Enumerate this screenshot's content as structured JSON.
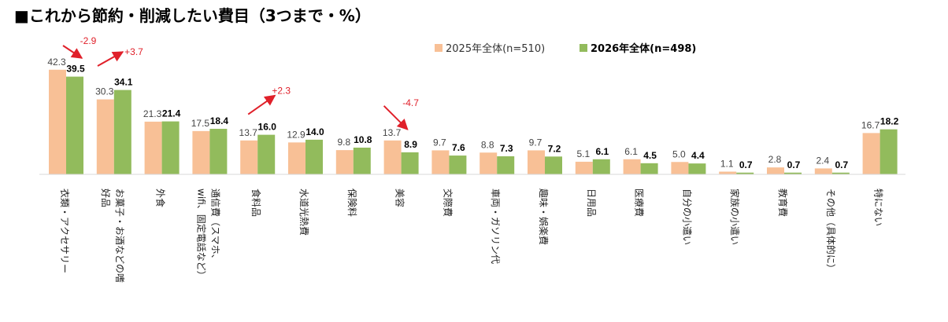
{
  "chart_data": {
    "type": "bar",
    "title": "■これから節約・削減したい費目（3つまで・%）",
    "categories": [
      [
        "衣類・アクセサリー"
      ],
      [
        "お菓子・お酒などの嗜",
        "好品"
      ],
      [
        "外食"
      ],
      [
        "通信費（スマホ、",
        "wifi、固定電話など）"
      ],
      [
        "食料品"
      ],
      [
        "水道光熱費"
      ],
      [
        "保険料"
      ],
      [
        "美容"
      ],
      [
        "交際費"
      ],
      [
        "車両・ガソリン代"
      ],
      [
        "趣味・娯楽費"
      ],
      [
        "日用品"
      ],
      [
        "医療費"
      ],
      [
        "自分の小遣い"
      ],
      [
        "家族の小遣い"
      ],
      [
        "教育費"
      ],
      [
        "その他（具体的に）"
      ],
      [
        "特にない"
      ]
    ],
    "series": [
      {
        "name": "2025年全体(n=510)",
        "color": "#F8C096",
        "values": [
          42.3,
          30.3,
          21.3,
          17.5,
          13.7,
          12.9,
          9.8,
          13.7,
          9.7,
          8.8,
          9.7,
          5.1,
          6.1,
          5.0,
          1.1,
          2.8,
          2.4,
          16.7
        ]
      },
      {
        "name": "2026年全体(n=498)",
        "color": "#92BB5C",
        "values": [
          39.5,
          34.1,
          21.4,
          18.4,
          16.0,
          14.0,
          10.8,
          8.9,
          7.6,
          7.3,
          7.2,
          6.1,
          4.5,
          4.4,
          0.7,
          0.7,
          0.7,
          18.2
        ]
      }
    ],
    "value_labels": {
      "a": [
        "42.3",
        "30.3",
        "21.3",
        "17.5",
        "13.7",
        "12.9",
        "9.8",
        "13.7",
        "9.7",
        "8.8",
        "9.7",
        "5.1",
        "6.1",
        "5.0",
        "1.1",
        "2.8",
        "2.4",
        "16.7"
      ],
      "b": [
        "39.5",
        "34.1",
        "21.4",
        "18.4",
        "16.0",
        "14.0",
        "10.8",
        "8.9",
        "7.6",
        "7.3",
        "7.2",
        "6.1",
        "4.5",
        "4.4",
        "0.7",
        "0.7",
        "0.7",
        "18.2"
      ]
    },
    "annotations": [
      {
        "category_index": 0,
        "text": "-2.9",
        "direction": "down"
      },
      {
        "category_index": 1,
        "text": "+3.7",
        "direction": "up"
      },
      {
        "category_index": 4,
        "text": "+2.3",
        "direction": "up"
      },
      {
        "category_index": 7,
        "text": "-4.7",
        "direction": "down"
      }
    ],
    "annotation_color": "#E0202A",
    "ylim": [
      0,
      45
    ],
    "grid": false,
    "legend_position": "top-right",
    "xlabel": "",
    "ylabel": ""
  }
}
